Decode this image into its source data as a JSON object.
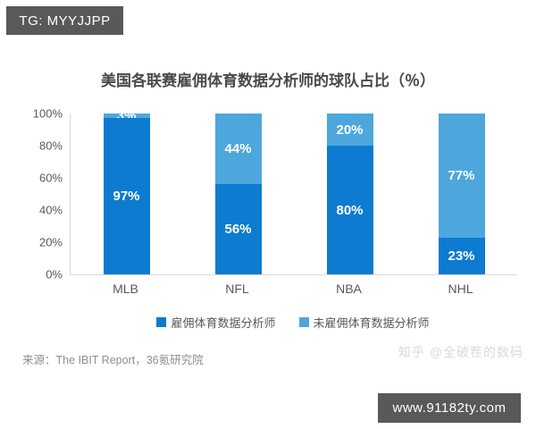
{
  "overlays": {
    "tg_label": "TG: MYYJJPP",
    "website_label": "www.91182ty.com",
    "box_bg": "#59595b",
    "watermark": "知乎 @全破茬的数码"
  },
  "chart_data": {
    "type": "bar",
    "stacked": true,
    "title": "美国各联赛雇佣体育数据分析师的球队占比（％）",
    "categories": [
      "MLB",
      "NFL",
      "NBA",
      "NHL"
    ],
    "series": [
      {
        "name": "雇佣体育数据分析师",
        "color": "#0c7bd0",
        "values": [
          97,
          56,
          80,
          23
        ]
      },
      {
        "name": "未雇佣体育数据分析师",
        "color": "#4da7dd",
        "values": [
          3,
          44,
          20,
          77
        ]
      }
    ],
    "value_suffix": "%",
    "y_ticks": [
      "100%",
      "80%",
      "60%",
      "40%",
      "20%",
      "0%"
    ],
    "ylim": [
      0,
      100
    ],
    "grid": false,
    "legend_position": "bottom",
    "source": "来源：The IBIT Report，36氪研究院"
  }
}
